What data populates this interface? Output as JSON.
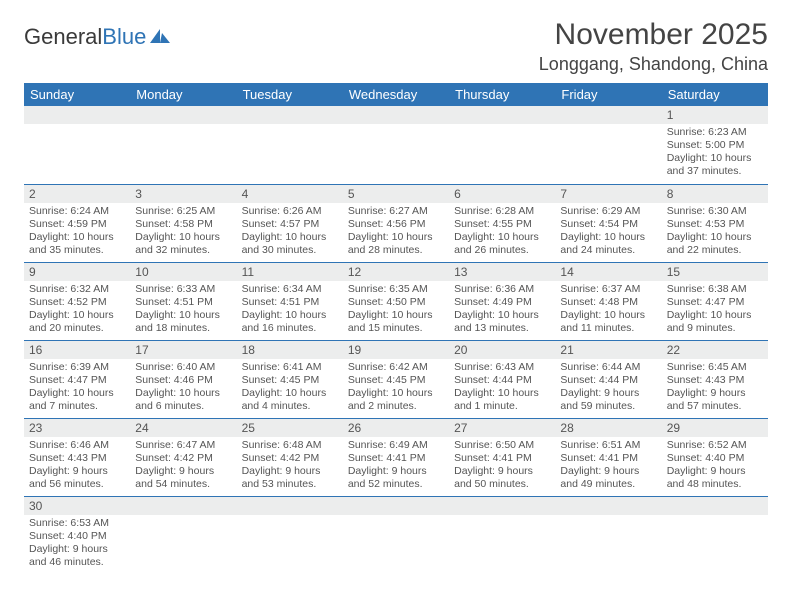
{
  "logo": {
    "text1": "General",
    "text2": "Blue"
  },
  "title": "November 2025",
  "location": "Longgang, Shandong, China",
  "colors": {
    "header_bg": "#2f74b5",
    "header_text": "#ffffff",
    "daynum_bg": "#eceded",
    "border": "#2f74b5",
    "text": "#555555"
  },
  "weekdays": [
    "Sunday",
    "Monday",
    "Tuesday",
    "Wednesday",
    "Thursday",
    "Friday",
    "Saturday"
  ],
  "weeks": [
    [
      null,
      null,
      null,
      null,
      null,
      null,
      {
        "n": "1",
        "sr": "Sunrise: 6:23 AM",
        "ss": "Sunset: 5:00 PM",
        "dl": "Daylight: 10 hours and 37 minutes."
      }
    ],
    [
      {
        "n": "2",
        "sr": "Sunrise: 6:24 AM",
        "ss": "Sunset: 4:59 PM",
        "dl": "Daylight: 10 hours and 35 minutes."
      },
      {
        "n": "3",
        "sr": "Sunrise: 6:25 AM",
        "ss": "Sunset: 4:58 PM",
        "dl": "Daylight: 10 hours and 32 minutes."
      },
      {
        "n": "4",
        "sr": "Sunrise: 6:26 AM",
        "ss": "Sunset: 4:57 PM",
        "dl": "Daylight: 10 hours and 30 minutes."
      },
      {
        "n": "5",
        "sr": "Sunrise: 6:27 AM",
        "ss": "Sunset: 4:56 PM",
        "dl": "Daylight: 10 hours and 28 minutes."
      },
      {
        "n": "6",
        "sr": "Sunrise: 6:28 AM",
        "ss": "Sunset: 4:55 PM",
        "dl": "Daylight: 10 hours and 26 minutes."
      },
      {
        "n": "7",
        "sr": "Sunrise: 6:29 AM",
        "ss": "Sunset: 4:54 PM",
        "dl": "Daylight: 10 hours and 24 minutes."
      },
      {
        "n": "8",
        "sr": "Sunrise: 6:30 AM",
        "ss": "Sunset: 4:53 PM",
        "dl": "Daylight: 10 hours and 22 minutes."
      }
    ],
    [
      {
        "n": "9",
        "sr": "Sunrise: 6:32 AM",
        "ss": "Sunset: 4:52 PM",
        "dl": "Daylight: 10 hours and 20 minutes."
      },
      {
        "n": "10",
        "sr": "Sunrise: 6:33 AM",
        "ss": "Sunset: 4:51 PM",
        "dl": "Daylight: 10 hours and 18 minutes."
      },
      {
        "n": "11",
        "sr": "Sunrise: 6:34 AM",
        "ss": "Sunset: 4:51 PM",
        "dl": "Daylight: 10 hours and 16 minutes."
      },
      {
        "n": "12",
        "sr": "Sunrise: 6:35 AM",
        "ss": "Sunset: 4:50 PM",
        "dl": "Daylight: 10 hours and 15 minutes."
      },
      {
        "n": "13",
        "sr": "Sunrise: 6:36 AM",
        "ss": "Sunset: 4:49 PM",
        "dl": "Daylight: 10 hours and 13 minutes."
      },
      {
        "n": "14",
        "sr": "Sunrise: 6:37 AM",
        "ss": "Sunset: 4:48 PM",
        "dl": "Daylight: 10 hours and 11 minutes."
      },
      {
        "n": "15",
        "sr": "Sunrise: 6:38 AM",
        "ss": "Sunset: 4:47 PM",
        "dl": "Daylight: 10 hours and 9 minutes."
      }
    ],
    [
      {
        "n": "16",
        "sr": "Sunrise: 6:39 AM",
        "ss": "Sunset: 4:47 PM",
        "dl": "Daylight: 10 hours and 7 minutes."
      },
      {
        "n": "17",
        "sr": "Sunrise: 6:40 AM",
        "ss": "Sunset: 4:46 PM",
        "dl": "Daylight: 10 hours and 6 minutes."
      },
      {
        "n": "18",
        "sr": "Sunrise: 6:41 AM",
        "ss": "Sunset: 4:45 PM",
        "dl": "Daylight: 10 hours and 4 minutes."
      },
      {
        "n": "19",
        "sr": "Sunrise: 6:42 AM",
        "ss": "Sunset: 4:45 PM",
        "dl": "Daylight: 10 hours and 2 minutes."
      },
      {
        "n": "20",
        "sr": "Sunrise: 6:43 AM",
        "ss": "Sunset: 4:44 PM",
        "dl": "Daylight: 10 hours and 1 minute."
      },
      {
        "n": "21",
        "sr": "Sunrise: 6:44 AM",
        "ss": "Sunset: 4:44 PM",
        "dl": "Daylight: 9 hours and 59 minutes."
      },
      {
        "n": "22",
        "sr": "Sunrise: 6:45 AM",
        "ss": "Sunset: 4:43 PM",
        "dl": "Daylight: 9 hours and 57 minutes."
      }
    ],
    [
      {
        "n": "23",
        "sr": "Sunrise: 6:46 AM",
        "ss": "Sunset: 4:43 PM",
        "dl": "Daylight: 9 hours and 56 minutes."
      },
      {
        "n": "24",
        "sr": "Sunrise: 6:47 AM",
        "ss": "Sunset: 4:42 PM",
        "dl": "Daylight: 9 hours and 54 minutes."
      },
      {
        "n": "25",
        "sr": "Sunrise: 6:48 AM",
        "ss": "Sunset: 4:42 PM",
        "dl": "Daylight: 9 hours and 53 minutes."
      },
      {
        "n": "26",
        "sr": "Sunrise: 6:49 AM",
        "ss": "Sunset: 4:41 PM",
        "dl": "Daylight: 9 hours and 52 minutes."
      },
      {
        "n": "27",
        "sr": "Sunrise: 6:50 AM",
        "ss": "Sunset: 4:41 PM",
        "dl": "Daylight: 9 hours and 50 minutes."
      },
      {
        "n": "28",
        "sr": "Sunrise: 6:51 AM",
        "ss": "Sunset: 4:41 PM",
        "dl": "Daylight: 9 hours and 49 minutes."
      },
      {
        "n": "29",
        "sr": "Sunrise: 6:52 AM",
        "ss": "Sunset: 4:40 PM",
        "dl": "Daylight: 9 hours and 48 minutes."
      }
    ],
    [
      {
        "n": "30",
        "sr": "Sunrise: 6:53 AM",
        "ss": "Sunset: 4:40 PM",
        "dl": "Daylight: 9 hours and 46 minutes."
      },
      null,
      null,
      null,
      null,
      null,
      null
    ]
  ]
}
